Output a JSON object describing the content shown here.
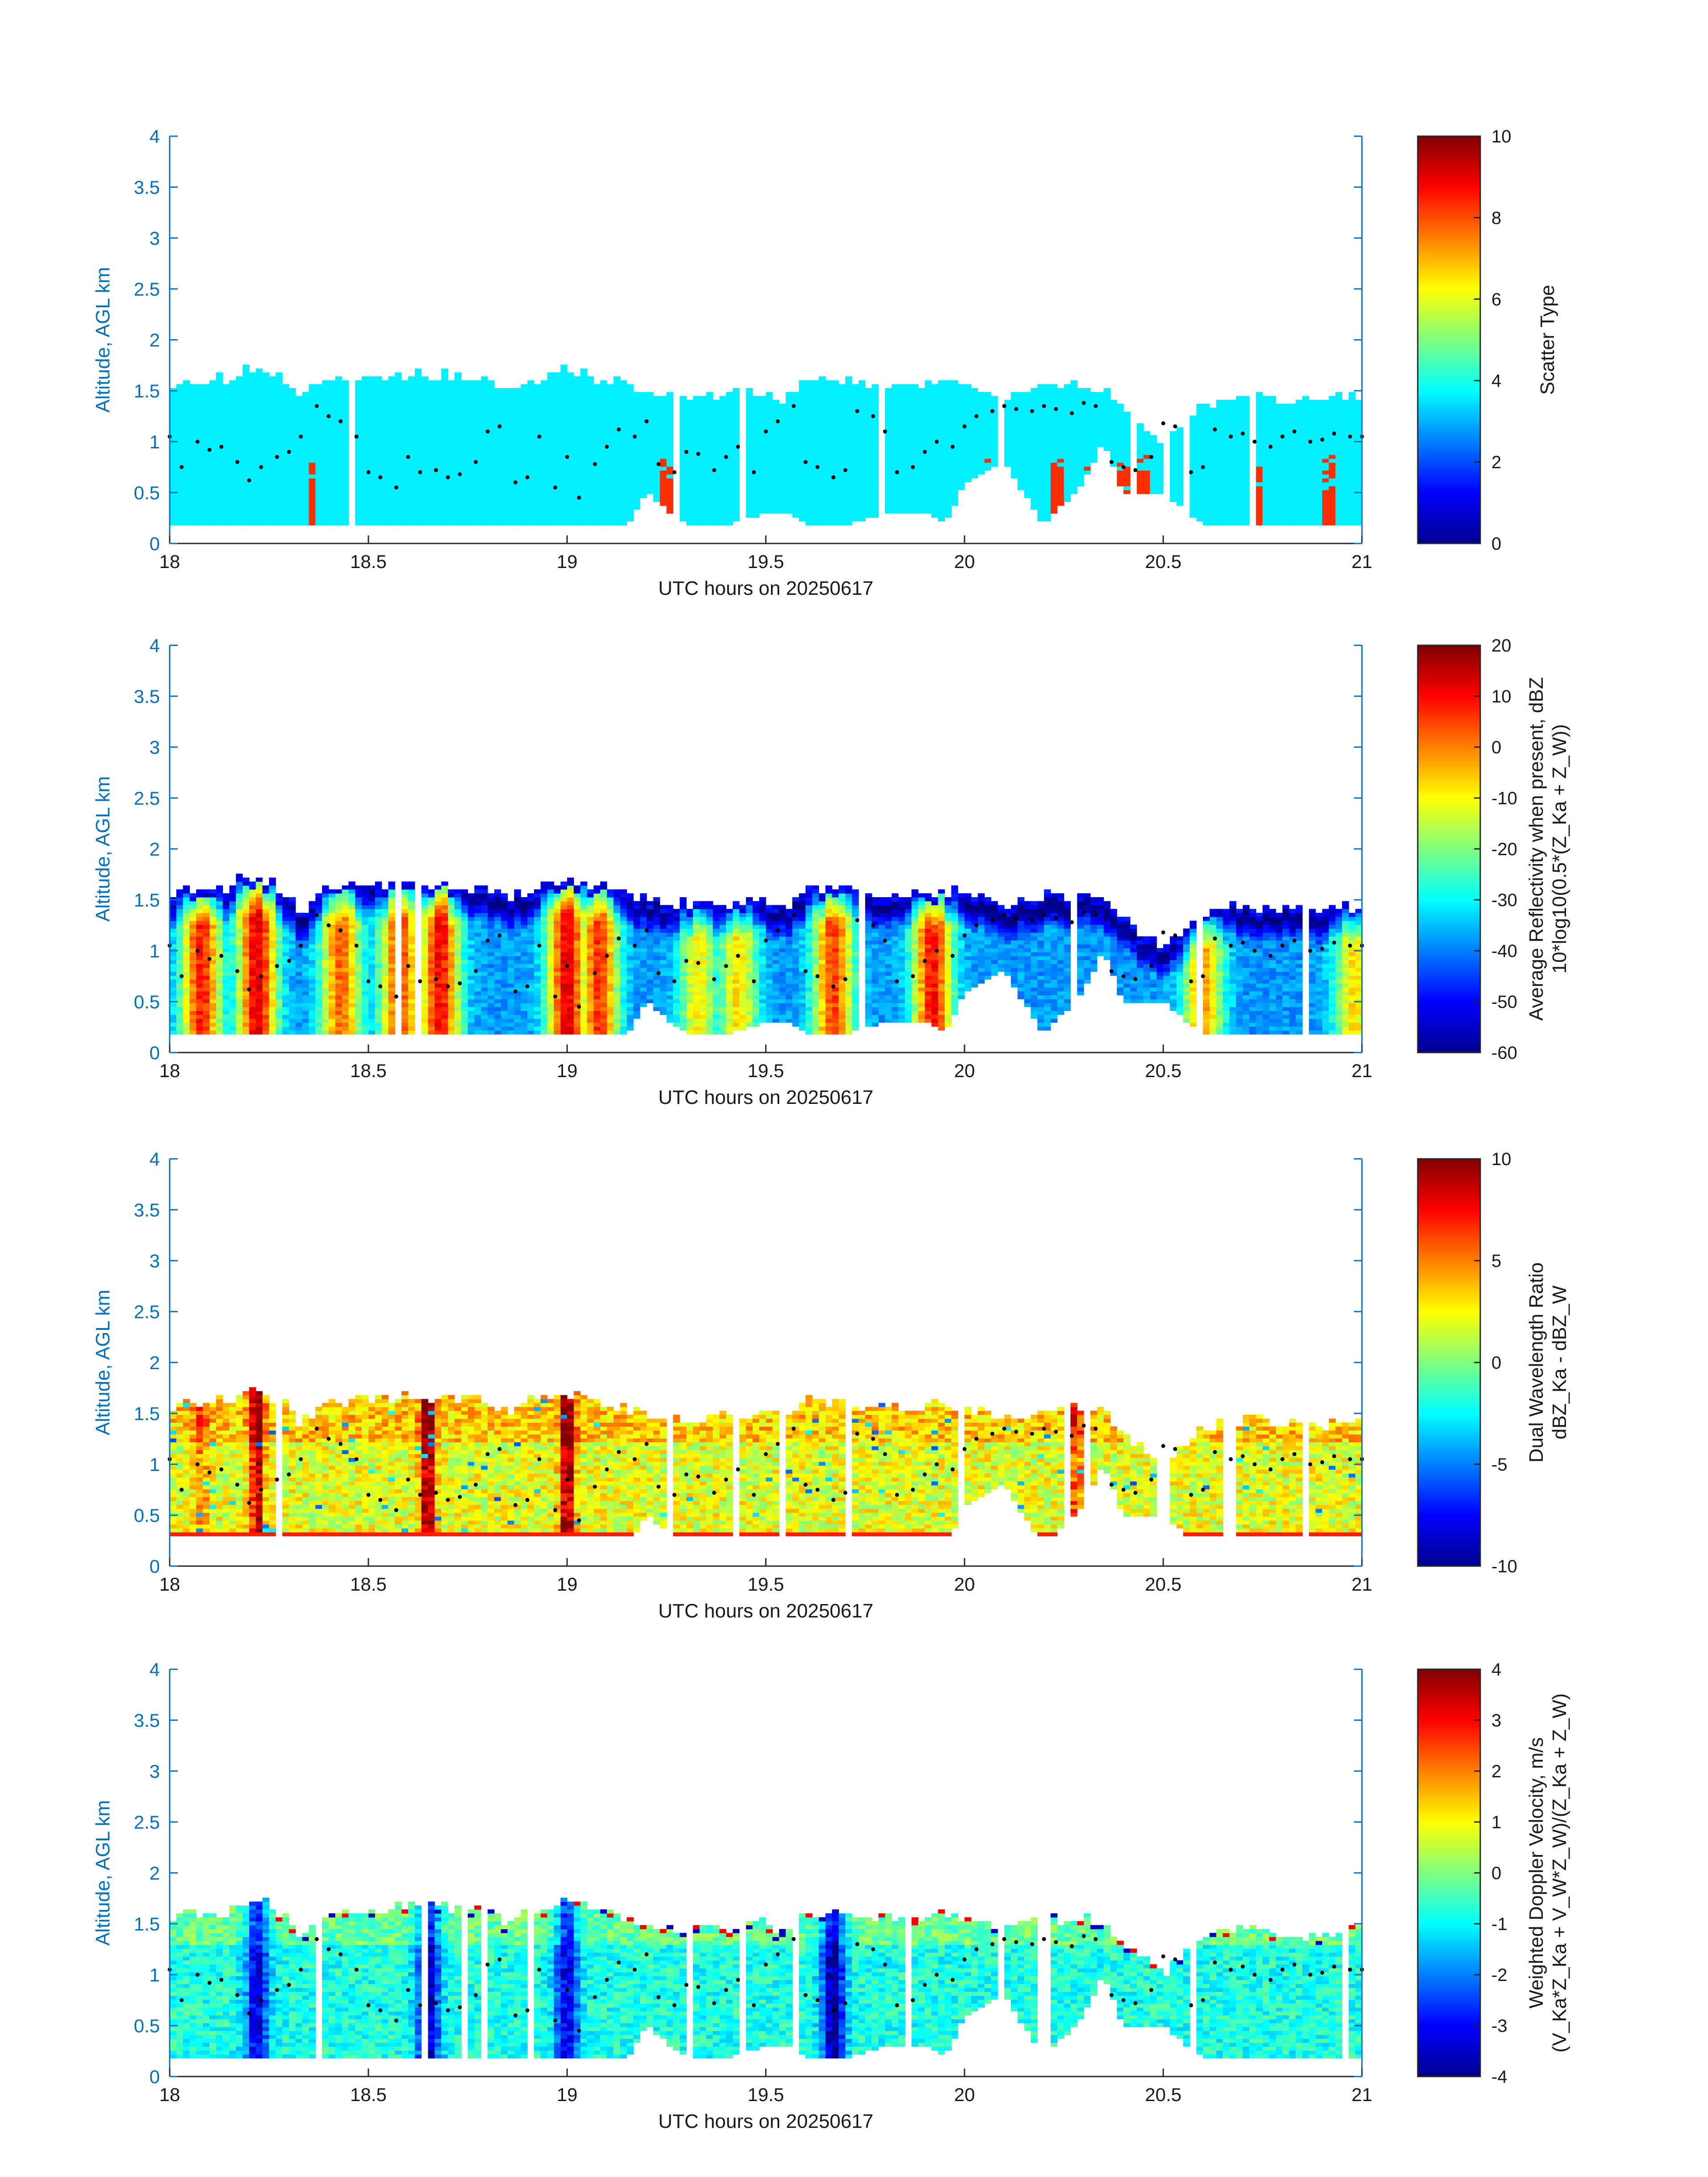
{
  "chart_data": [
    {
      "type": "heatmap",
      "field": "scatter_type",
      "xlabel": "UTC hours on 20250617",
      "ylabel": "Altitude, AGL km",
      "xlim": [
        18,
        21
      ],
      "ylim": [
        0,
        4
      ],
      "xticks": [
        "18",
        "18.5",
        "19",
        "19.5",
        "20",
        "20.5",
        "21"
      ],
      "yticks": [
        "0",
        "0.5",
        "1",
        "1.5",
        "2",
        "2.5",
        "3",
        "3.5",
        "4"
      ],
      "colorbar": {
        "label_lines": [
          "Scatter Type"
        ],
        "range": [
          0,
          10
        ],
        "ticks": [
          "0",
          "2",
          "4",
          "6",
          "8",
          "10"
        ]
      },
      "dominant_value": 3.6,
      "secondary_value": 8.3,
      "secondary_columns_hours": [
        18.355,
        19.24,
        19.26,
        20.06,
        20.23,
        20.32,
        20.34,
        20.4,
        20.43,
        20.45,
        20.56,
        20.74,
        20.92
      ]
    },
    {
      "type": "heatmap",
      "field": "average_reflectivity",
      "xlabel": "UTC hours on 20250617",
      "ylabel": "Altitude, AGL km",
      "xlim": [
        18,
        21
      ],
      "ylim": [
        0,
        4
      ],
      "xticks": [
        "18",
        "18.5",
        "19",
        "19.5",
        "20",
        "20.5",
        "21"
      ],
      "yticks": [
        "0",
        "0.5",
        "1",
        "1.5",
        "2",
        "2.5",
        "3",
        "3.5",
        "4"
      ],
      "colorbar": {
        "label_lines": [
          "Average Reflectivity when present, dBZ",
          "10*log10(0.5*(Z_Ka + Z_W))"
        ],
        "range": [
          -60,
          20
        ],
        "ticks": [
          "-60",
          "-50",
          "-40",
          "-30",
          "-20",
          "-10",
          "0",
          "10",
          "20"
        ]
      },
      "core_hours": [
        18.08,
        18.22,
        18.43,
        18.58,
        18.68,
        19.0,
        19.08,
        19.33,
        19.43,
        19.67,
        19.92,
        20.6,
        20.98
      ],
      "core_peak_dbz": [
        8,
        12,
        2,
        5,
        10,
        12,
        6,
        -10,
        -8,
        5,
        9,
        -2,
        -8
      ]
    },
    {
      "type": "heatmap",
      "field": "dual_wavelength_ratio",
      "xlabel": "UTC hours on 20250617",
      "ylabel": "Altitude, AGL km",
      "xlim": [
        18,
        21
      ],
      "ylim": [
        0,
        4
      ],
      "xticks": [
        "18",
        "18.5",
        "19",
        "19.5",
        "20",
        "20.5",
        "21"
      ],
      "yticks": [
        "0",
        "0.5",
        "1",
        "1.5",
        "2",
        "2.5",
        "3",
        "3.5",
        "4"
      ],
      "colorbar": {
        "label_lines": [
          "Dual Wavelength Ratio",
          "dBZ_Ka - dBZ_W"
        ],
        "range": [
          -10,
          10
        ],
        "ticks": [
          "-10",
          "-5",
          "0",
          "5",
          "10"
        ]
      },
      "core_hours": [
        18.08,
        18.22,
        18.65,
        19.0,
        20.28
      ],
      "core_peak_dwr": [
        5,
        9,
        10,
        10,
        6
      ]
    },
    {
      "type": "heatmap",
      "field": "weighted_doppler_velocity",
      "xlabel": "UTC hours on 20250617",
      "ylabel": "Altitude, AGL km",
      "xlim": [
        18,
        21
      ],
      "ylim": [
        0,
        4
      ],
      "xticks": [
        "18",
        "18.5",
        "19",
        "19.5",
        "20",
        "20.5",
        "21"
      ],
      "yticks": [
        "0",
        "0.5",
        "1",
        "1.5",
        "2",
        "2.5",
        "3",
        "3.5",
        "4"
      ],
      "colorbar": {
        "label_lines": [
          "Weighted Doppler Velocity, m/s",
          "(V_Ka*Z_Ka + V_W*Z_W)/(Z_Ka + Z_W)"
        ],
        "range": [
          -4,
          4
        ],
        "ticks": [
          "-4",
          "-3",
          "-2",
          "-1",
          "0",
          "1",
          "2",
          "3",
          "4"
        ]
      },
      "core_hours": [
        18.22,
        18.65,
        19.0,
        19.67
      ],
      "core_min_velocity": [
        -3.2,
        -3.5,
        -3.2,
        -3.8
      ]
    }
  ],
  "cloud_boundary": {
    "x": [
      18.0,
      18.05,
      18.1,
      18.15,
      18.18,
      18.2,
      18.25,
      18.3,
      18.33,
      18.35,
      18.4,
      18.5,
      18.6,
      18.7,
      18.8,
      18.85,
      18.9,
      18.95,
      19.0,
      19.05,
      19.1,
      19.15,
      19.2,
      19.3,
      19.4,
      19.5,
      19.55,
      19.6,
      19.7,
      19.8,
      19.9,
      19.95,
      20.0,
      20.1,
      20.2,
      20.3,
      20.35,
      20.4,
      20.5,
      20.6,
      20.7,
      20.8,
      20.9,
      21.0
    ],
    "top": [
      1.58,
      1.6,
      1.6,
      1.62,
      1.7,
      1.75,
      1.68,
      1.58,
      1.35,
      1.5,
      1.62,
      1.65,
      1.65,
      1.65,
      1.62,
      1.5,
      1.62,
      1.66,
      1.7,
      1.66,
      1.6,
      1.56,
      1.5,
      1.45,
      1.45,
      1.5,
      1.4,
      1.62,
      1.6,
      1.56,
      1.56,
      1.6,
      1.55,
      1.45,
      1.55,
      1.55,
      1.5,
      1.3,
      1.0,
      1.38,
      1.45,
      1.42,
      1.4,
      1.45
    ],
    "base": [
      0.18,
      0.18,
      0.18,
      0.18,
      0.18,
      0.18,
      0.18,
      0.18,
      0.18,
      0.18,
      0.18,
      0.18,
      0.18,
      0.18,
      0.18,
      0.18,
      0.18,
      0.18,
      0.18,
      0.18,
      0.18,
      0.18,
      0.5,
      0.18,
      0.18,
      0.3,
      0.3,
      0.18,
      0.18,
      0.3,
      0.3,
      0.18,
      0.6,
      0.8,
      0.18,
      0.6,
      1.0,
      0.5,
      0.5,
      0.18,
      0.18,
      0.18,
      0.18,
      0.18
    ]
  },
  "dotted_trace": {
    "x": [
      18.0,
      18.03,
      18.07,
      18.1,
      18.13,
      18.17,
      18.2,
      18.23,
      18.27,
      18.3,
      18.33,
      18.37,
      18.4,
      18.43,
      18.47,
      18.5,
      18.53,
      18.57,
      18.6,
      18.63,
      18.67,
      18.7,
      18.73,
      18.77,
      18.8,
      18.83,
      18.87,
      18.9,
      18.93,
      18.97,
      19.0,
      19.03,
      19.07,
      19.1,
      19.13,
      19.17,
      19.2,
      19.23,
      19.27,
      19.3,
      19.33,
      19.37,
      19.4,
      19.43,
      19.47,
      19.5,
      19.53,
      19.57,
      19.6,
      19.63,
      19.67,
      19.7,
      19.73,
      19.77,
      19.8,
      19.83,
      19.87,
      19.9,
      19.93,
      19.97,
      20.0,
      20.03,
      20.07,
      20.1,
      20.13,
      20.17,
      20.2,
      20.23,
      20.27,
      20.3,
      20.33,
      20.37,
      20.4,
      20.43,
      20.47,
      20.5,
      20.53,
      20.57,
      20.6,
      20.63,
      20.67,
      20.7,
      20.73,
      20.77,
      20.8,
      20.83,
      20.87,
      20.9,
      20.93,
      20.97,
      21.0
    ],
    "y": [
      1.05,
      0.75,
      1.0,
      0.92,
      0.95,
      0.8,
      0.62,
      0.75,
      0.85,
      0.9,
      1.05,
      1.35,
      1.25,
      1.2,
      1.05,
      0.7,
      0.65,
      0.55,
      0.85,
      0.7,
      0.72,
      0.65,
      0.68,
      0.8,
      1.1,
      1.15,
      0.6,
      0.65,
      1.05,
      0.55,
      0.85,
      0.45,
      0.78,
      0.95,
      1.12,
      1.05,
      1.2,
      0.78,
      0.7,
      0.9,
      0.88,
      0.72,
      0.85,
      0.95,
      0.7,
      1.1,
      1.2,
      1.35,
      0.8,
      0.75,
      0.65,
      0.72,
      1.3,
      1.25,
      1.1,
      0.7,
      0.75,
      0.9,
      1.0,
      0.95,
      1.15,
      1.25,
      1.3,
      1.35,
      1.32,
      1.3,
      1.35,
      1.32,
      1.28,
      1.38,
      1.35,
      0.8,
      0.75,
      0.72,
      0.85,
      1.18,
      1.15,
      0.7,
      0.75,
      1.12,
      1.05,
      1.08,
      1.0,
      0.95,
      1.05,
      1.1,
      1.0,
      1.02,
      1.08,
      1.05,
      1.05
    ]
  }
}
